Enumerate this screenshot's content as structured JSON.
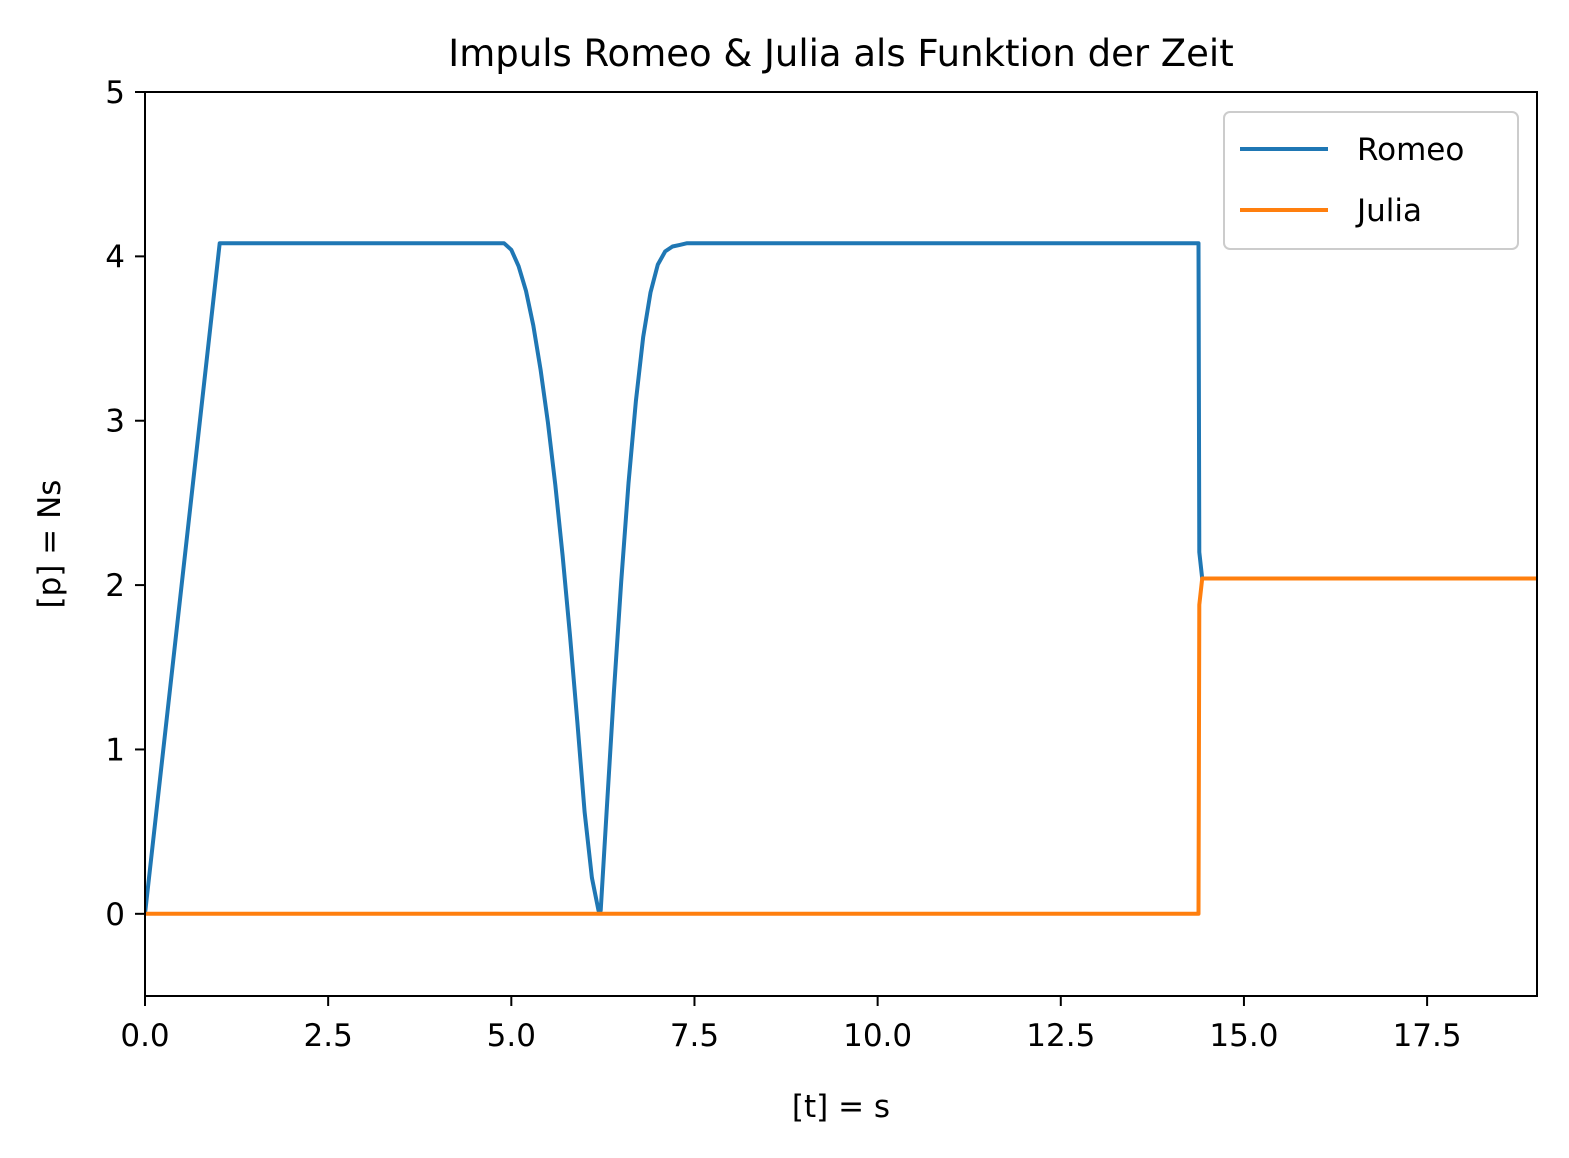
{
  "chart_data": {
    "type": "line",
    "title": "Impuls Romeo & Julia als Funktion der Zeit",
    "xlabel": "[t] = s",
    "ylabel": "[p] = Ns",
    "xlim": [
      0,
      19
    ],
    "ylim": [
      -0.5,
      5
    ],
    "xticks": [
      0,
      2.5,
      5,
      7.5,
      10,
      12.5,
      15,
      17.5
    ],
    "xtick_labels": [
      "0.0",
      "2.5",
      "5.0",
      "7.5",
      "10.0",
      "12.5",
      "15.0",
      "17.5"
    ],
    "yticks": [
      0,
      1,
      2,
      3,
      4,
      5
    ],
    "ytick_labels": [
      "0",
      "1",
      "2",
      "3",
      "4",
      "5"
    ],
    "grid": false,
    "legend_position": "top-right",
    "series": [
      {
        "name": "Romeo",
        "color": "#1f77b4",
        "x": [
          0,
          1.02,
          4.9,
          5.0,
          5.1,
          5.2,
          5.3,
          5.4,
          5.5,
          5.6,
          5.7,
          5.8,
          5.9,
          6.0,
          6.1,
          6.19,
          6.22,
          6.3,
          6.4,
          6.5,
          6.6,
          6.7,
          6.8,
          6.9,
          7.0,
          7.1,
          7.2,
          7.3,
          7.4,
          7.5,
          14.38,
          14.39,
          14.43,
          19
        ],
        "y": [
          0,
          4.08,
          4.08,
          4.04,
          3.94,
          3.79,
          3.58,
          3.31,
          2.99,
          2.61,
          2.18,
          1.7,
          1.17,
          0.62,
          0.22,
          0.02,
          0.02,
          0.62,
          1.35,
          2.02,
          2.62,
          3.12,
          3.51,
          3.78,
          3.95,
          4.03,
          4.06,
          4.07,
          4.08,
          4.08,
          4.08,
          2.2,
          2.04,
          2.04
        ]
      },
      {
        "name": "Julia",
        "color": "#ff7f0e",
        "x": [
          0,
          14.38,
          14.39,
          14.43,
          19
        ],
        "y": [
          0,
          0,
          1.88,
          2.04,
          2.04
        ]
      }
    ]
  }
}
